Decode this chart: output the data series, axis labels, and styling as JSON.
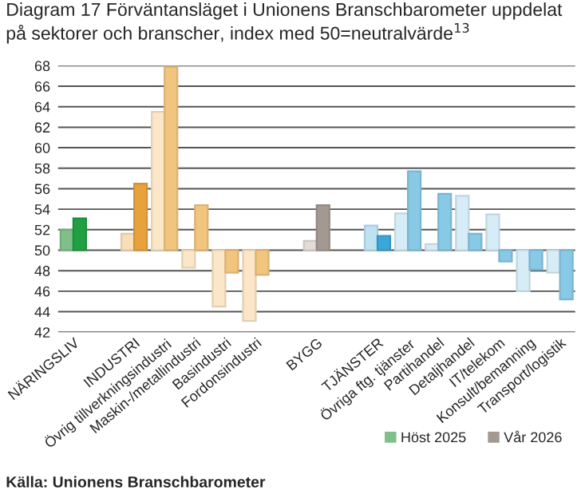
{
  "chart_data": {
    "type": "bar",
    "title": "Diagram 17 Förväntansläget i Unionens Branschbarometer uppdelat på sektorer och branscher, index med 50=neutralvärde$^{13}$",
    "categories": [
      "NÄRINGSLIV",
      null,
      "INDUSTRI",
      "Övrig tillverkningsindustri",
      "Maskin-/metallindustri",
      "Basindustri",
      "Fordonsindustri",
      null,
      "BYGG",
      null,
      "TJÄNSTER",
      "Övriga ftg. tjänster",
      "Partihandel",
      "Detaljhandel",
      "IT/telekom",
      "Konsult/bemanning",
      "Transport/logistik"
    ],
    "series": [
      {
        "name": "Höst 2025",
        "color": "#7fbf8a",
        "base": [
          50,
          null,
          50,
          50,
          50,
          50,
          50,
          null,
          50,
          null,
          50,
          50,
          50,
          50,
          50,
          50,
          50
        ],
        "values": [
          2.0,
          null,
          1.6,
          13.5,
          -1.7,
          -5.5,
          -6.9,
          null,
          0.9,
          null,
          2.4,
          3.6,
          0.6,
          5.3,
          3.5,
          -4.0,
          -2.2
        ],
        "colors": [
          "#7fbf8a",
          null,
          "#f9dfb8",
          "#fbe6c8",
          "#fbe6c8",
          "#fbe6c8",
          "#fbe6c8",
          null,
          "#e2dcd8",
          null,
          "#bfe2f2",
          "#d6edf7",
          "#d6edf7",
          "#d6edf7",
          "#d6edf7",
          "#d6edf7",
          "#d6edf7"
        ]
      },
      {
        "name": "Vår 2026",
        "color": "#a39892",
        "base": [
          50,
          null,
          50,
          50,
          50,
          50,
          50,
          null,
          50,
          null,
          50,
          50,
          50,
          50,
          50,
          50,
          50
        ],
        "values": [
          3.1,
          null,
          6.5,
          17.9,
          4.4,
          -2.2,
          -2.4,
          null,
          4.4,
          null,
          1.4,
          7.7,
          5.5,
          1.6,
          -1.1,
          -1.9,
          -4.8
        ],
        "colors": [
          "#21a043",
          null,
          "#e8a23c",
          "#f2c57f",
          "#f2c57f",
          "#f2c57f",
          "#f2c57f",
          null,
          "#a39892",
          null,
          "#3aa7d6",
          "#88c9e6",
          "#88c9e6",
          "#88c9e6",
          "#88c9e6",
          "#88c9e6",
          "#88c9e6"
        ]
      }
    ],
    "ylim": [
      42,
      68
    ],
    "yticks": [
      42,
      44,
      46,
      48,
      50,
      52,
      54,
      56,
      58,
      60,
      62,
      64,
      66,
      68
    ],
    "grid": "y",
    "legend": "bottom",
    "annotations": [
      "Källa: Unionens Branschbarometer"
    ]
  }
}
